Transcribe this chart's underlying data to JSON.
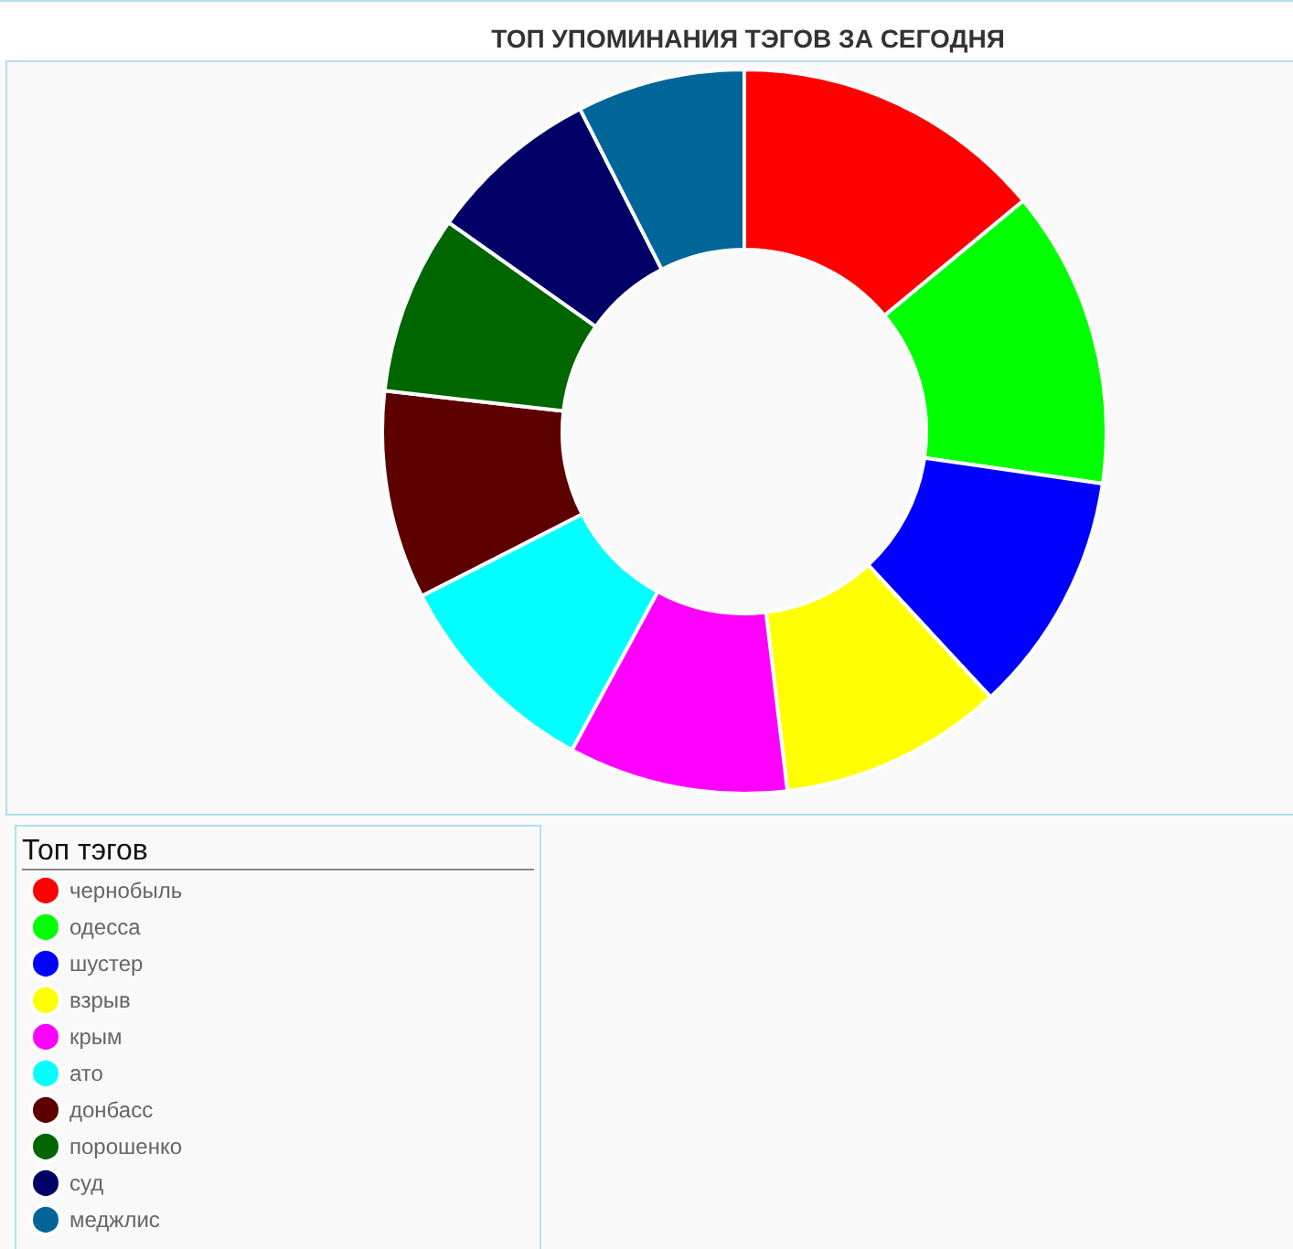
{
  "chart_data": {
    "type": "donut",
    "title": "ТОП УПОМИНАНИЯ ТЭГОВ ЗА СЕГОДНЯ",
    "legend_title": "Топ тэгов",
    "categories": [
      "чернобыль",
      "одесса",
      "шустер",
      "взрыв",
      "крым",
      "ато",
      "донбасс",
      "порошенко",
      "суд",
      "меджлис"
    ],
    "values": [
      14.0,
      13.3,
      10.8,
      10.0,
      9.8,
      9.6,
      9.3,
      8.0,
      7.7,
      7.5
    ],
    "colors": [
      "#ff0000",
      "#00ff00",
      "#0000ff",
      "#ffff00",
      "#ff00ff",
      "#00ffff",
      "#5c0000",
      "#006600",
      "#000066",
      "#006699"
    ],
    "legend": "bottom left"
  }
}
